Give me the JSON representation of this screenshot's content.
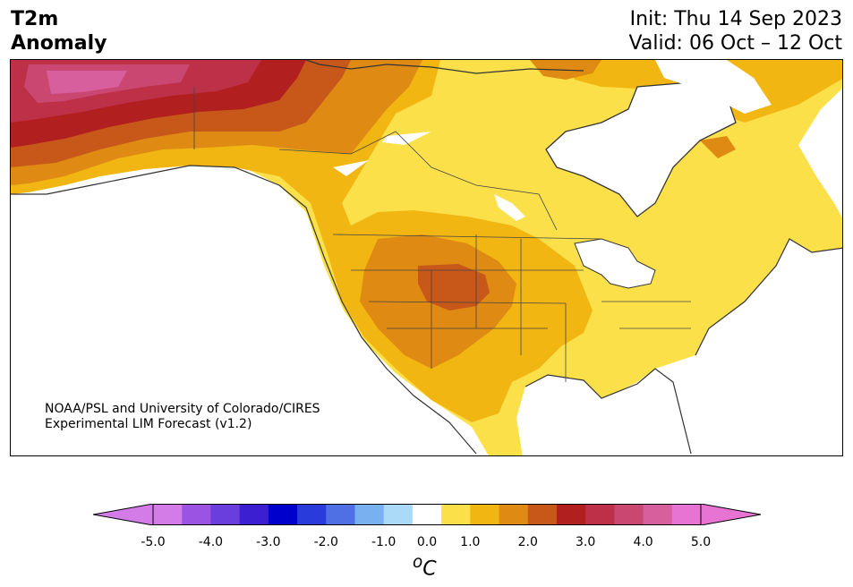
{
  "header": {
    "title_line1": "T2m",
    "title_line2": "Anomaly",
    "init": "Init: Thu 14 Sep 2023",
    "valid": "Valid: 06 Oct – 12 Oct"
  },
  "credit": {
    "line1": "NOAA/PSL and University of Colorado/CIRES",
    "line2": "Experimental LIM Forecast (v1.2)"
  },
  "colorbar": {
    "ticks": [
      "-5.0",
      "-4.0",
      "-3.0",
      "-2.0",
      "-1.0",
      "0.0",
      "1.0",
      "2.0",
      "3.0",
      "4.0",
      "5.0"
    ],
    "unit": "oC",
    "unit_base": "C",
    "unit_sup": "o",
    "bins": [
      -5.0,
      -4.5,
      -4.0,
      -3.5,
      -3.0,
      -2.5,
      -2.0,
      -1.5,
      -1.0,
      -0.5,
      0.5,
      1.0,
      1.5,
      2.0,
      2.5,
      3.0,
      3.5,
      4.0,
      4.5,
      5.0
    ],
    "colors": [
      "#d37ce8",
      "#9b53e3",
      "#6a3ddd",
      "#3b1fd1",
      "#0000cc",
      "#2a3bdc",
      "#4f70e4",
      "#78b0f0",
      "#aadaf8",
      "#ffffff",
      "#fbe04a",
      "#f2b612",
      "#df8b13",
      "#c8571a",
      "#b21f1f",
      "#bd3048",
      "#c94770",
      "#d85f9d",
      "#e774d3"
    ],
    "extend_low_color": "#d37ce8",
    "extend_high_color": "#e774d3"
  }
}
